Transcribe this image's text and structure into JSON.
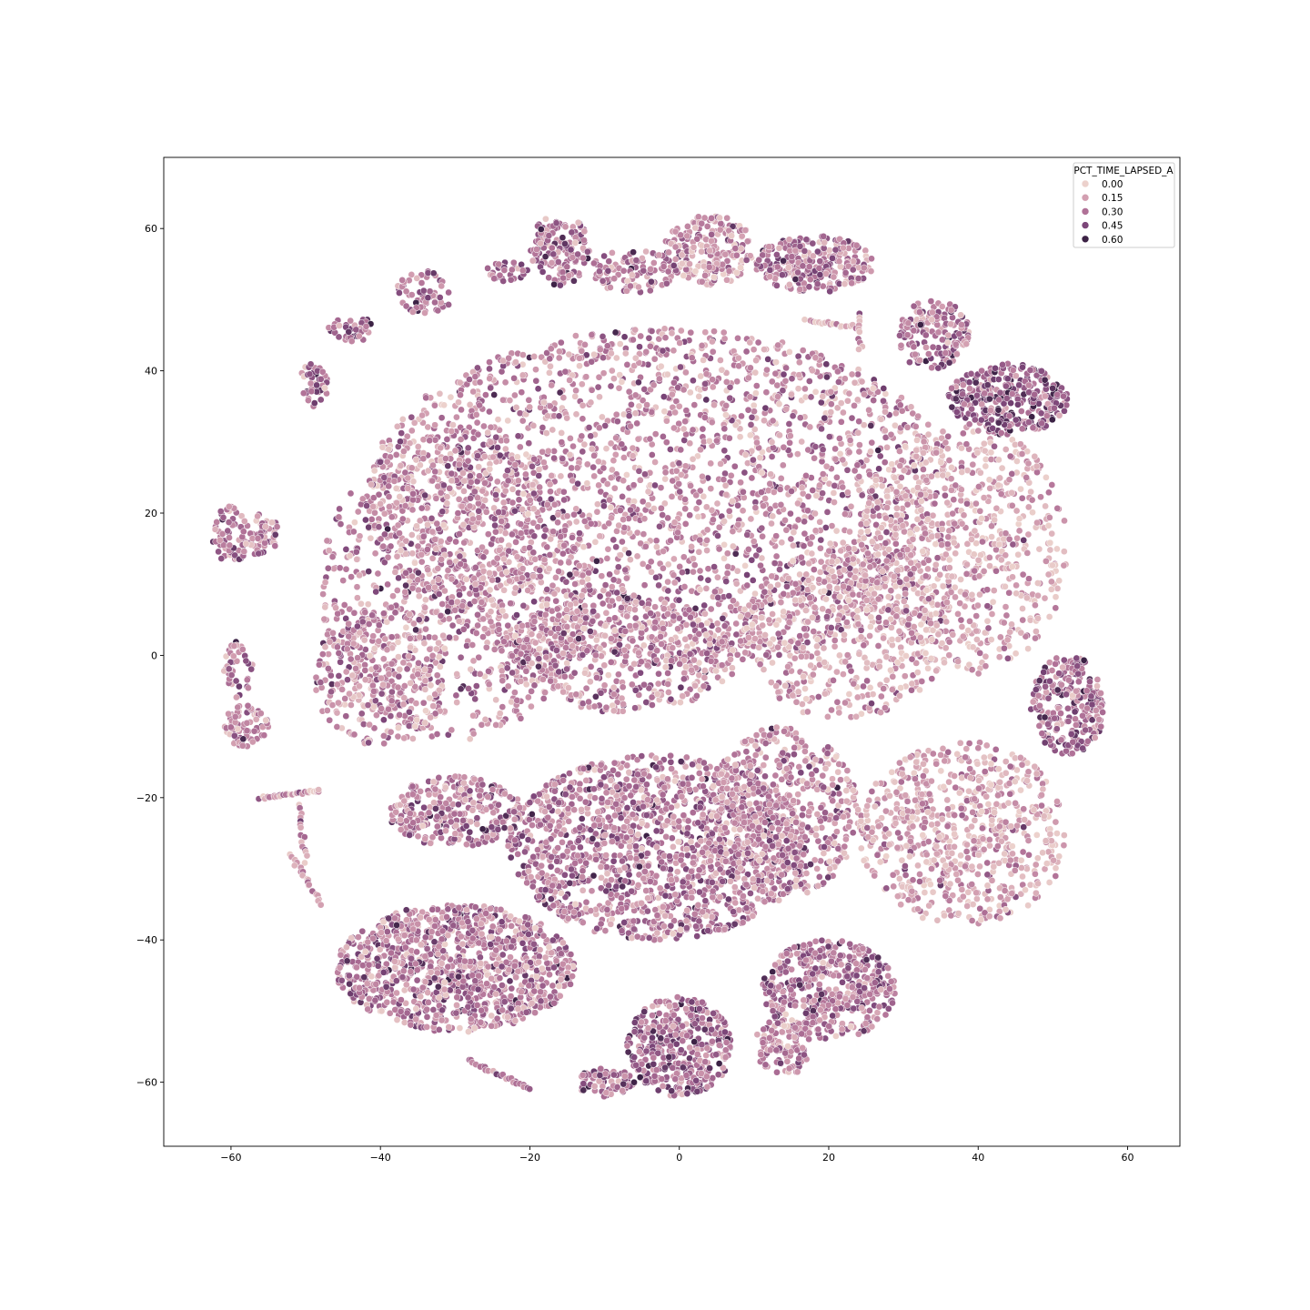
{
  "chart_data": {
    "type": "scatter",
    "title": "",
    "xlabel": "",
    "ylabel": "",
    "xlim": [
      -69,
      67
    ],
    "ylim": [
      -69,
      70
    ],
    "xticks": [
      -60,
      -40,
      -20,
      0,
      20,
      40,
      60
    ],
    "yticks": [
      -60,
      -40,
      -20,
      0,
      20,
      40,
      60
    ],
    "xtick_labels": [
      "−60",
      "−40",
      "−20",
      "0",
      "20",
      "40",
      "60"
    ],
    "ytick_labels": [
      "−60",
      "−40",
      "−20",
      "0",
      "20",
      "40",
      "60"
    ],
    "grid": false,
    "hue_variable": "PCT_TIME_LAPSED_A",
    "legend": {
      "title": "PCT_TIME_LAPSED_A",
      "placement": "top-right",
      "entries": [
        {
          "label": "0.00",
          "value": 0.0,
          "color": "#ecd1cc"
        },
        {
          "label": "0.15",
          "value": 0.15,
          "color": "#d39fb1"
        },
        {
          "label": "0.30",
          "value": 0.3,
          "color": "#b07197"
        },
        {
          "label": "0.45",
          "value": 0.45,
          "color": "#7c4679"
        },
        {
          "label": "0.60",
          "value": 0.6,
          "color": "#3c2245"
        }
      ]
    },
    "point_edge_color": "#ffffff",
    "clusters": [
      {
        "cx": -2,
        "cy": 22,
        "rx": 40,
        "ry": 24,
        "n": 2600,
        "mean_value": 0.22
      },
      {
        "cx": -30,
        "cy": 10,
        "rx": 18,
        "ry": 22,
        "n": 900,
        "mean_value": 0.22
      },
      {
        "cx": 38,
        "cy": 15,
        "rx": 14,
        "ry": 18,
        "n": 700,
        "mean_value": 0.12
      },
      {
        "cx": 22,
        "cy": 3,
        "rx": 14,
        "ry": 12,
        "n": 500,
        "mean_value": 0.14
      },
      {
        "cx": -8,
        "cy": 0,
        "rx": 16,
        "ry": 8,
        "n": 500,
        "mean_value": 0.22
      },
      {
        "cx": -40,
        "cy": -3,
        "rx": 9,
        "ry": 10,
        "n": 300,
        "mean_value": 0.22
      },
      {
        "cx": -3,
        "cy": -27,
        "rx": 20,
        "ry": 13,
        "n": 1500,
        "mean_value": 0.27
      },
      {
        "cx": 14,
        "cy": -22,
        "rx": 10,
        "ry": 12,
        "n": 500,
        "mean_value": 0.22
      },
      {
        "cx": -30,
        "cy": -22,
        "rx": 9,
        "ry": 5,
        "n": 300,
        "mean_value": 0.27
      },
      {
        "cx": -30,
        "cy": -44,
        "rx": 16,
        "ry": 9,
        "n": 1100,
        "mean_value": 0.26
      },
      {
        "cx": 38,
        "cy": -25,
        "rx": 14,
        "ry": 13,
        "n": 700,
        "mean_value": 0.13
      },
      {
        "cx": 52,
        "cy": -7,
        "rx": 5,
        "ry": 7,
        "n": 250,
        "mean_value": 0.33
      },
      {
        "cx": 44,
        "cy": 36,
        "rx": 8,
        "ry": 5,
        "n": 320,
        "mean_value": 0.37
      },
      {
        "cx": 34,
        "cy": 45,
        "rx": 5,
        "ry": 5,
        "n": 160,
        "mean_value": 0.3
      },
      {
        "cx": 4,
        "cy": 57,
        "rx": 6,
        "ry": 5,
        "n": 220,
        "mean_value": 0.18
      },
      {
        "cx": 18,
        "cy": 55,
        "rx": 8,
        "ry": 4,
        "n": 260,
        "mean_value": 0.28
      },
      {
        "cx": -16,
        "cy": 57,
        "rx": 4,
        "ry": 5,
        "n": 150,
        "mean_value": 0.3
      },
      {
        "cx": -6,
        "cy": 54,
        "rx": 6,
        "ry": 3,
        "n": 100,
        "mean_value": 0.26
      },
      {
        "cx": -34,
        "cy": 51,
        "rx": 4,
        "ry": 3,
        "n": 60,
        "mean_value": 0.28
      },
      {
        "cx": -44,
        "cy": 46,
        "rx": 3,
        "ry": 2,
        "n": 40,
        "mean_value": 0.35
      },
      {
        "cx": -49,
        "cy": 38,
        "rx": 2,
        "ry": 3,
        "n": 40,
        "mean_value": 0.35
      },
      {
        "cx": -23,
        "cy": 54,
        "rx": 3,
        "ry": 1.5,
        "n": 30,
        "mean_value": 0.3
      },
      {
        "cx": 0,
        "cy": -55,
        "rx": 7,
        "ry": 7,
        "n": 400,
        "mean_value": 0.33
      },
      {
        "cx": -10,
        "cy": -60,
        "rx": 4,
        "ry": 2,
        "n": 80,
        "mean_value": 0.33
      },
      {
        "cx": 20,
        "cy": -47,
        "rx": 9,
        "ry": 7,
        "n": 450,
        "mean_value": 0.28
      },
      {
        "cx": 14,
        "cy": -55,
        "rx": 4,
        "ry": 4,
        "n": 100,
        "mean_value": 0.25
      },
      {
        "cx": -58,
        "cy": -10,
        "rx": 3,
        "ry": 3,
        "n": 80,
        "mean_value": 0.25
      },
      {
        "cx": -60,
        "cy": 17,
        "rx": 2.5,
        "ry": 4,
        "n": 60,
        "mean_value": 0.3
      },
      {
        "cx": -56,
        "cy": 17,
        "rx": 2.5,
        "ry": 3,
        "n": 50,
        "mean_value": 0.28
      },
      {
        "cx": -59,
        "cy": -2,
        "rx": 2,
        "ry": 4,
        "n": 40,
        "mean_value": 0.25
      }
    ],
    "strands": [
      {
        "from": [
          -56,
          -20
        ],
        "to": [
          -48,
          -19
        ],
        "n": 30,
        "mean_value": 0.15
      },
      {
        "from": [
          -51,
          -21
        ],
        "to": [
          -50,
          -29
        ],
        "n": 15,
        "mean_value": 0.15
      },
      {
        "from": [
          -52,
          -28
        ],
        "to": [
          -48,
          -35
        ],
        "n": 20,
        "mean_value": 0.15
      },
      {
        "from": [
          -28,
          -57
        ],
        "to": [
          -20,
          -61
        ],
        "n": 25,
        "mean_value": 0.3
      },
      {
        "from": [
          17,
          47
        ],
        "to": [
          24,
          46
        ],
        "n": 18,
        "mean_value": 0.12
      },
      {
        "from": [
          24,
          48
        ],
        "to": [
          24,
          43
        ],
        "n": 10,
        "mean_value": 0.1
      }
    ]
  }
}
